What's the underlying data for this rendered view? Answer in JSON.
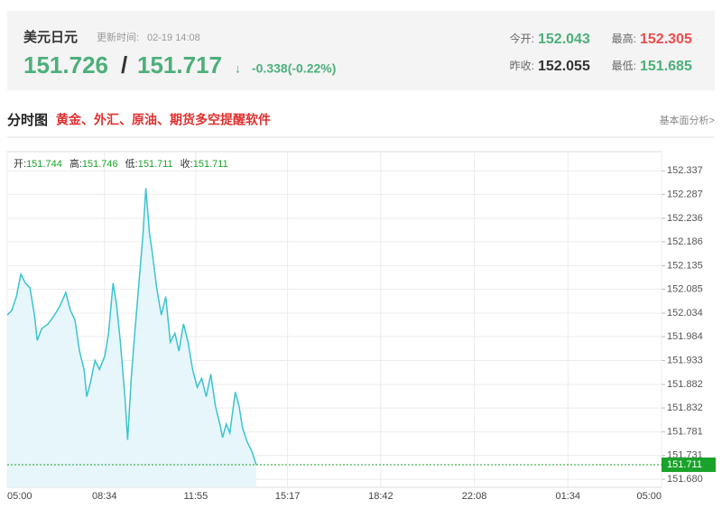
{
  "header": {
    "name": "美元日元",
    "update_label": "更新时间:",
    "update_time": "02-19 14:08",
    "bid": "151.726",
    "separator": "/",
    "ask": "151.717",
    "arrow": "↓",
    "change": "-0.338(-0.22%)",
    "stats": [
      {
        "label": "今开:",
        "value": "152.043"
      },
      {
        "label": "最高:",
        "value": "152.305"
      },
      {
        "label": "昨收:",
        "value": "152.055"
      },
      {
        "label": "最低:",
        "value": "151.685"
      }
    ]
  },
  "section": {
    "title": "分时图",
    "promo": "黄金、外汇、原油、期货多空提醒软件",
    "link": "基本面分析>"
  },
  "chart_data": {
    "type": "area",
    "summary": [
      {
        "label": "开:",
        "value": 151.744
      },
      {
        "label": "高:",
        "value": 151.746
      },
      {
        "label": "低:",
        "value": 151.711
      },
      {
        "label": "收:",
        "value": 151.711
      }
    ],
    "x": [
      0,
      10,
      20,
      30,
      40,
      50,
      60,
      66,
      76,
      90,
      104,
      116,
      129,
      139,
      149,
      159,
      169,
      175,
      183,
      193,
      203,
      215,
      223,
      233,
      241,
      249,
      259,
      265,
      273,
      279,
      289,
      299,
      305,
      313,
      319,
      329,
      339,
      349,
      359,
      369,
      378,
      388,
      398,
      408,
      418,
      428,
      438,
      448,
      458,
      468,
      474,
      482,
      490,
      502,
      510,
      518,
      528,
      538,
      548
    ],
    "values": [
      152.03,
      152.04,
      152.069,
      152.117,
      152.098,
      152.088,
      152.03,
      151.976,
      152.001,
      152.011,
      152.03,
      152.049,
      152.078,
      152.04,
      152.02,
      151.953,
      151.914,
      151.856,
      151.885,
      151.933,
      151.914,
      151.943,
      151.991,
      152.098,
      152.049,
      151.972,
      151.856,
      151.764,
      151.895,
      151.972,
      152.088,
      152.204,
      152.3,
      152.204,
      152.165,
      152.088,
      152.03,
      152.069,
      151.972,
      151.991,
      151.953,
      152.011,
      151.972,
      151.914,
      151.876,
      151.895,
      151.856,
      151.904,
      151.837,
      151.798,
      151.769,
      151.798,
      151.779,
      151.866,
      151.837,
      151.789,
      151.76,
      151.74,
      151.711
    ],
    "color": "#3cc3d0",
    "fill": "#e6f6fa",
    "last_price": 151.711,
    "last_color": "#1aa32a",
    "xlim": [
      0,
      1440
    ],
    "xticks": [
      {
        "value": 0,
        "label": "05:00"
      },
      {
        "value": 214,
        "label": "08:34"
      },
      {
        "value": 415,
        "label": "11:55"
      },
      {
        "value": 617,
        "label": "15:17"
      },
      {
        "value": 822,
        "label": "18:42"
      },
      {
        "value": 1028,
        "label": "22:08"
      },
      {
        "value": 1234,
        "label": "01:34"
      },
      {
        "value": 1440,
        "label": "05:00"
      }
    ],
    "ylim": [
      151.663,
      152.378
    ],
    "yticks": [
      152.337,
      152.287,
      152.236,
      152.186,
      152.135,
      152.085,
      152.034,
      151.984,
      151.933,
      151.882,
      151.832,
      151.781,
      151.731,
      {
        "value": 151.68,
        "label": "151.680"
      }
    ],
    "grid": true
  }
}
